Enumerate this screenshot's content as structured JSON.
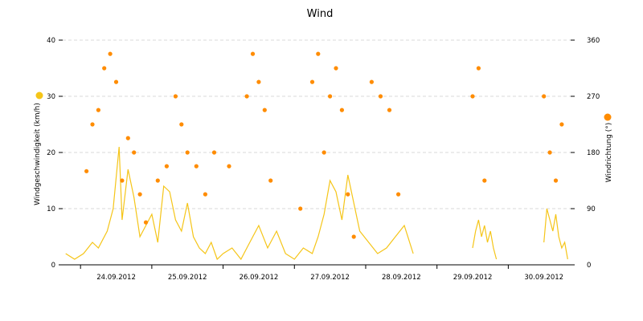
{
  "chart_data": {
    "type": "line+scatter",
    "title": "Wind",
    "ylabel_left": "Windgeschwindigkeit (km/h)",
    "ylabel_right": "Windrichtung (°)",
    "ylim_left": [
      0,
      40
    ],
    "ylim_right": [
      0,
      360
    ],
    "yticks_left": [
      "0",
      "10",
      "20",
      "30",
      "40"
    ],
    "yticks_right": [
      "0",
      "90",
      "180",
      "270",
      "360"
    ],
    "xlim_days": [
      "23.09.2012 18:00",
      "30.09.2012 21:00"
    ],
    "xtick_labels": [
      "24.09.2012",
      "25.09.2012",
      "26.09.2012",
      "27.09.2012",
      "28.09.2012",
      "29.09.2012",
      "30.09.2012"
    ],
    "grid": "horizontal dashed",
    "series": [
      {
        "axis": "left",
        "kind": "line",
        "color": "#f5c518",
        "segments": [
          {
            "x": [
              "23.09.2012 19:00",
              "23.09.2012 22:00",
              "24.09.2012 01:00",
              "24.09.2012 04:00",
              "24.09.2012 06:00",
              "24.09.2012 09:00",
              "24.09.2012 11:00",
              "24.09.2012 13:00",
              "24.09.2012 14:00",
              "24.09.2012 16:00",
              "24.09.2012 18:00",
              "24.09.2012 20:00",
              "24.09.2012 22:00",
              "25.09.2012 00:00",
              "25.09.2012 02:00",
              "25.09.2012 04:00",
              "25.09.2012 06:00",
              "25.09.2012 08:00",
              "25.09.2012 10:00",
              "25.09.2012 12:00",
              "25.09.2012 14:00",
              "25.09.2012 16:00",
              "25.09.2012 18:00",
              "25.09.2012 20:00",
              "25.09.2012 22:00",
              "26.09.2012 00:00",
              "26.09.2012 03:00",
              "26.09.2012 06:00",
              "26.09.2012 09:00",
              "26.09.2012 12:00",
              "26.09.2012 15:00",
              "26.09.2012 18:00",
              "26.09.2012 21:00",
              "27.09.2012 00:00",
              "27.09.2012 03:00",
              "27.09.2012 06:00",
              "27.09.2012 08:00",
              "27.09.2012 10:00",
              "27.09.2012 12:00",
              "27.09.2012 14:00",
              "27.09.2012 16:00",
              "27.09.2012 18:00",
              "27.09.2012 20:00",
              "27.09.2012 22:00",
              "28.09.2012 01:00",
              "28.09.2012 04:00",
              "28.09.2012 07:00",
              "28.09.2012 10:00",
              "28.09.2012 13:00",
              "28.09.2012 16:00"
            ],
            "y": [
              2,
              1,
              2,
              4,
              3,
              6,
              10,
              21,
              8,
              17,
              12,
              5,
              7,
              9,
              4,
              14,
              13,
              8,
              6,
              11,
              5,
              3,
              2,
              4,
              1,
              2,
              3,
              1,
              4,
              7,
              3,
              6,
              2,
              1,
              3,
              2,
              5,
              9,
              15,
              13,
              8,
              16,
              11,
              6,
              4,
              2,
              3,
              5,
              7,
              2
            ]
          },
          {
            "x": [
              "29.09.2012 12:00",
              "29.09.2012 13:00",
              "29.09.2012 14:00",
              "29.09.2012 15:00",
              "29.09.2012 16:00",
              "29.09.2012 17:00",
              "29.09.2012 18:00",
              "29.09.2012 19:00",
              "29.09.2012 20:00"
            ],
            "y": [
              3,
              6,
              8,
              5,
              7,
              4,
              6,
              3,
              1
            ]
          },
          {
            "x": [
              "30.09.2012 12:00",
              "30.09.2012 13:00",
              "30.09.2012 14:00",
              "30.09.2012 15:00",
              "30.09.2012 16:00",
              "30.09.2012 17:00",
              "30.09.2012 18:00",
              "30.09.2012 19:00",
              "30.09.2012 20:00"
            ],
            "y": [
              4,
              10,
              8,
              6,
              9,
              5,
              3,
              4,
              1
            ]
          }
        ]
      },
      {
        "axis": "right",
        "kind": "scatter",
        "color": "#ff8c00",
        "x": [
          "24.09.2012 02:00",
          "24.09.2012 04:00",
          "24.09.2012 06:00",
          "24.09.2012 08:00",
          "24.09.2012 10:00",
          "24.09.2012 12:00",
          "24.09.2012 14:00",
          "24.09.2012 16:00",
          "24.09.2012 18:00",
          "24.09.2012 20:00",
          "24.09.2012 22:00",
          "25.09.2012 02:00",
          "25.09.2012 05:00",
          "25.09.2012 08:00",
          "25.09.2012 10:00",
          "25.09.2012 12:00",
          "25.09.2012 15:00",
          "25.09.2012 18:00",
          "25.09.2012 21:00",
          "26.09.2012 02:00",
          "26.09.2012 08:00",
          "26.09.2012 10:00",
          "26.09.2012 12:00",
          "26.09.2012 14:00",
          "26.09.2012 16:00",
          "27.09.2012 02:00",
          "27.09.2012 06:00",
          "27.09.2012 08:00",
          "27.09.2012 10:00",
          "27.09.2012 12:00",
          "27.09.2012 14:00",
          "27.09.2012 16:00",
          "27.09.2012 18:00",
          "27.09.2012 20:00",
          "28.09.2012 02:00",
          "28.09.2012 05:00",
          "28.09.2012 08:00",
          "28.09.2012 11:00",
          "29.09.2012 12:00",
          "29.09.2012 14:00",
          "29.09.2012 16:00",
          "30.09.2012 12:00",
          "30.09.2012 14:00",
          "30.09.2012 16:00",
          "30.09.2012 18:00"
        ],
        "y": [
          150,
          225,
          248,
          315,
          338,
          293,
          135,
          203,
          180,
          113,
          68,
          135,
          158,
          270,
          225,
          180,
          158,
          113,
          180,
          158,
          270,
          338,
          293,
          248,
          135,
          90,
          293,
          338,
          180,
          270,
          315,
          248,
          113,
          45,
          293,
          270,
          248,
          113,
          270,
          315,
          135,
          270,
          180,
          135,
          225
        ]
      }
    ]
  }
}
